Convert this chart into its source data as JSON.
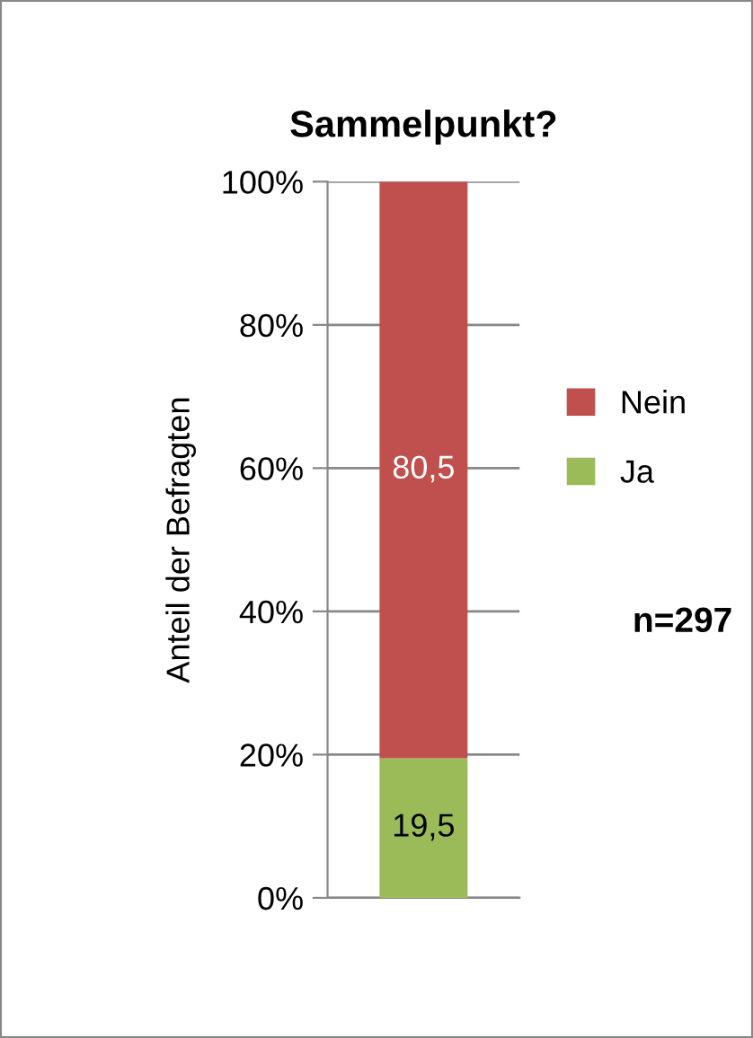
{
  "chart_data": {
    "type": "bar",
    "title": "Sammelpunkt?",
    "ylabel": "Anteil der Befragten",
    "categories": [
      null
    ],
    "stacked": true,
    "series": [
      {
        "name": "Ja",
        "color": "#9bbb59",
        "values": [
          19.5
        ],
        "value_labels": [
          "19,5"
        ]
      },
      {
        "name": "Nein",
        "color": "#c0504d",
        "values": [
          80.5
        ],
        "value_labels": [
          "80,5"
        ]
      }
    ],
    "ylim": [
      0,
      100
    ],
    "yticks": [
      {
        "value": 0,
        "label": "0%"
      },
      {
        "value": 20,
        "label": "20%"
      },
      {
        "value": 40,
        "label": "40%"
      },
      {
        "value": 60,
        "label": "60%"
      },
      {
        "value": 80,
        "label": "80%"
      },
      {
        "value": 100,
        "label": "100%"
      }
    ],
    "grid": "y",
    "legend": "right",
    "annotations": [
      "n=297"
    ]
  }
}
